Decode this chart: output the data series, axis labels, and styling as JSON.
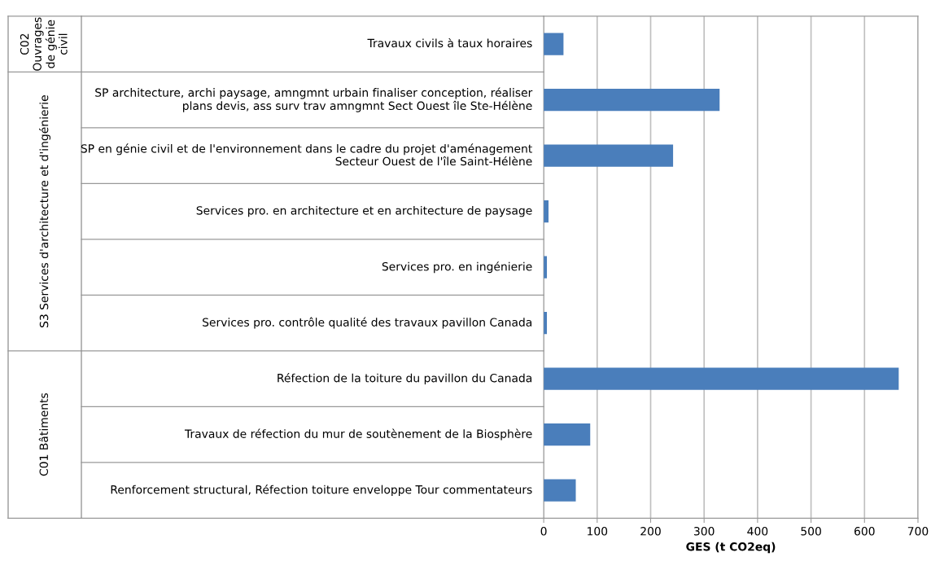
{
  "chart_data": {
    "type": "bar",
    "orientation": "horizontal",
    "xlabel": "GES (t CO2eq)",
    "categories": [
      "Travaux civils à taux horaires",
      "SP architecture, archi paysage, amngmnt urbain finaliser conception, réaliser\nplans devis, ass surv trav amngmnt Sect Ouest île Ste-Hélène",
      "SP en génie civil et de l'environnement dans le cadre du projet d'aménagement\nSecteur Ouest de l'île Saint-Hélène",
      "Services pro. en architecture et en architecture de paysage",
      "Services pro. en ingénierie",
      "Services pro. contrôle qualité des travaux pavillon Canada",
      "Réfection de la toiture du pavillon du Canada",
      "Travaux de réfection du mur de soutènement de la Biosphère",
      "Renforcement structural, Réfection toiture enveloppe Tour commentateurs"
    ],
    "values": [
      37,
      329,
      242,
      9,
      6,
      6,
      664,
      87,
      60
    ],
    "color": "#4a7ebb",
    "xlim": [
      0,
      700
    ],
    "xticks": [
      0,
      100,
      200,
      300,
      400,
      500,
      600,
      700
    ],
    "grid": "x",
    "annotations": [
      "C02\nOuvrages\nde génie\ncivil",
      "S3 Services d'architecture et d'ingénierie",
      "C01 Bâtiments"
    ]
  }
}
